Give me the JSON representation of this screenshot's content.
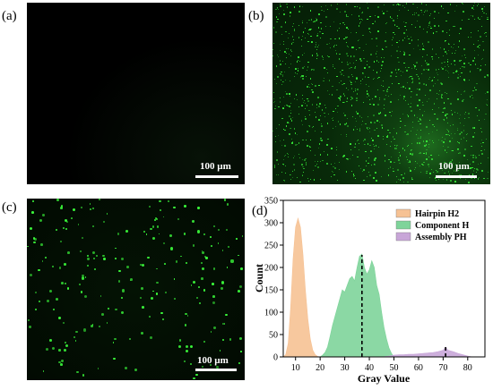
{
  "panels": {
    "a": {
      "label": "(a)",
      "scale_label": "100 µm"
    },
    "b": {
      "label": "(b)",
      "scale_label": "100 µm"
    },
    "c": {
      "label": "(c)",
      "scale_label": "100 µm"
    },
    "d": {
      "label": "(d)"
    }
  },
  "chart_data": {
    "type": "area",
    "xlabel": "Gray Value",
    "ylabel": "Count",
    "xlim": [
      5,
      87
    ],
    "ylim": [
      0,
      350
    ],
    "xticks": [
      10,
      20,
      30,
      40,
      50,
      60,
      70,
      80
    ],
    "yticks": [
      0,
      50,
      100,
      150,
      200,
      250,
      300,
      350
    ],
    "legend_position": "top-right",
    "series": [
      {
        "name": "Hairpin H2",
        "color": "#f6c294",
        "x": [
          5,
          6,
          7,
          8,
          9,
          10,
          11,
          12,
          13,
          14,
          15,
          16,
          17,
          18,
          19,
          20
        ],
        "values": [
          0,
          5,
          30,
          110,
          220,
          290,
          310,
          290,
          230,
          150,
          85,
          40,
          15,
          5,
          1,
          0
        ]
      },
      {
        "name": "Component H",
        "color": "#7ed49a",
        "x": [
          20,
          21,
          22,
          23,
          24,
          25,
          26,
          27,
          28,
          29,
          30,
          31,
          32,
          33,
          34,
          35,
          36,
          37,
          38,
          39,
          40,
          41,
          42,
          43,
          44,
          45,
          46,
          47,
          48,
          49,
          50
        ],
        "values": [
          0,
          4,
          10,
          22,
          45,
          70,
          90,
          110,
          130,
          150,
          145,
          160,
          175,
          180,
          170,
          200,
          225,
          230,
          200,
          185,
          195,
          215,
          200,
          160,
          140,
          100,
          65,
          40,
          20,
          8,
          0
        ]
      },
      {
        "name": "Assembly PH",
        "color": "#c8a6d8",
        "x": [
          45,
          48,
          50,
          52,
          54,
          56,
          58,
          60,
          62,
          64,
          66,
          68,
          70,
          71,
          72,
          74,
          76,
          78,
          80,
          82
        ],
        "values": [
          0,
          2,
          4,
          5,
          5,
          6,
          6,
          7,
          8,
          9,
          10,
          12,
          15,
          22,
          15,
          12,
          8,
          5,
          2,
          0
        ]
      }
    ],
    "annotations": [
      {
        "type": "dashed-vline",
        "x": 37,
        "y_top": 228
      },
      {
        "type": "dashed-vline",
        "x": 71,
        "y_top": 22
      }
    ]
  }
}
